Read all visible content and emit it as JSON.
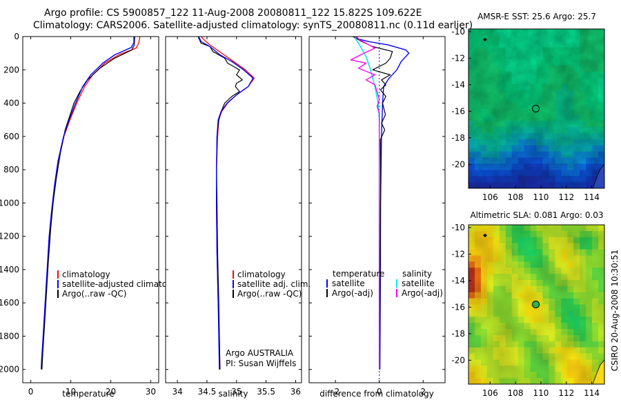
{
  "header": {
    "title_line1": "Argo profile: CS 5900857_122 11-Aug-2008 20080811_122 15.822S 109.622E",
    "title_line2": "Climatology: CARS2006. Satellite-adjusted climatology: synTS_20080811.nc (0.11d earlier)"
  },
  "side_label": "CSIRO 20-Aug-2008 10:30:51",
  "chart_data": [
    {
      "id": "temperature",
      "type": "line",
      "xlabel": "temperature",
      "ylabel": "",
      "xlim": [
        -2,
        32
      ],
      "ylim": [
        2080,
        0
      ],
      "y_reversed": true,
      "xticks": [
        0,
        10,
        20,
        30
      ],
      "yticks": [
        0,
        200,
        400,
        600,
        800,
        1000,
        1200,
        1400,
        1600,
        1800,
        2000
      ],
      "legend": {
        "position": "center-right",
        "entries": [
          "climatology",
          "satellite-adjusted climatology",
          "Argo(..raw -QC)"
        ]
      },
      "series": [
        {
          "name": "climatology",
          "color": "#ff0000",
          "width": 1.3,
          "points": [
            [
              27.3,
              0
            ],
            [
              27.0,
              40
            ],
            [
              26.3,
              70
            ],
            [
              22,
              110
            ],
            [
              18.5,
              160
            ],
            [
              15.5,
              230
            ],
            [
              13.5,
              300
            ],
            [
              11.5,
              400
            ],
            [
              9.8,
              500
            ],
            [
              8.3,
              600
            ],
            [
              6.9,
              750
            ],
            [
              6.0,
              900
            ],
            [
              5.3,
              1050
            ],
            [
              4.7,
              1200
            ],
            [
              4.2,
              1400
            ],
            [
              3.7,
              1600
            ],
            [
              3.2,
              1800
            ],
            [
              2.8,
              1950
            ],
            [
              2.7,
              2000
            ]
          ]
        },
        {
          "name": "Argo(..raw -QC)",
          "color": "#000000",
          "width": 1.2,
          "points": [
            [
              26.0,
              0
            ],
            [
              25.9,
              50
            ],
            [
              25.3,
              80
            ],
            [
              21,
              130
            ],
            [
              17.3,
              190
            ],
            [
              14.2,
              260
            ],
            [
              12.3,
              330
            ],
            [
              10.8,
              400
            ],
            [
              9.7,
              480
            ],
            [
              8.6,
              560
            ],
            [
              7.4,
              700
            ],
            [
              6.4,
              850
            ],
            [
              5.6,
              1000
            ],
            [
              5.0,
              1150
            ],
            [
              4.4,
              1350
            ],
            [
              3.9,
              1550
            ],
            [
              3.4,
              1750
            ],
            [
              3.0,
              1900
            ],
            [
              2.8,
              2000
            ]
          ]
        },
        {
          "name": "satellite-adjusted climatology",
          "color": "#0000ff",
          "width": 1.4,
          "points": [
            [
              25.8,
              0
            ],
            [
              25.8,
              35
            ],
            [
              25.2,
              65
            ],
            [
              21,
              110
            ],
            [
              18.0,
              160
            ],
            [
              15.0,
              230
            ],
            [
              13.0,
              300
            ],
            [
              11.2,
              400
            ],
            [
              9.6,
              500
            ],
            [
              8.2,
              600
            ],
            [
              6.8,
              750
            ],
            [
              5.9,
              900
            ],
            [
              5.2,
              1050
            ],
            [
              4.6,
              1200
            ],
            [
              4.1,
              1400
            ],
            [
              3.6,
              1600
            ],
            [
              3.1,
              1800
            ],
            [
              2.7,
              1950
            ],
            [
              2.6,
              2000
            ]
          ]
        }
      ]
    },
    {
      "id": "salinity",
      "type": "line",
      "xlabel": "salinity",
      "ylabel": "",
      "xlim": [
        33.8,
        36.1
      ],
      "ylim": [
        2080,
        0
      ],
      "y_reversed": true,
      "xticks": [
        34,
        34.5,
        35,
        35.5,
        36
      ],
      "legend": {
        "position": "center-right",
        "entries": [
          "climatology",
          "satellite adj. clim.",
          "Argo(..raw -QC)"
        ]
      },
      "annotations": [
        "Argo AUSTRALIA",
        "PI: Susan Wijffels"
      ],
      "series": [
        {
          "name": "climatology",
          "color": "#ff0000",
          "width": 1.3,
          "points": [
            [
              34.4,
              0
            ],
            [
              34.45,
              20
            ],
            [
              34.55,
              50
            ],
            [
              34.75,
              100
            ],
            [
              34.95,
              150
            ],
            [
              35.15,
              200
            ],
            [
              35.3,
              250
            ],
            [
              35.2,
              300
            ],
            [
              35.0,
              350
            ],
            [
              34.85,
              400
            ],
            [
              34.75,
              450
            ],
            [
              34.7,
              500
            ],
            [
              34.68,
              600
            ],
            [
              34.66,
              800
            ],
            [
              34.66,
              1000
            ],
            [
              34.67,
              1300
            ],
            [
              34.69,
              1600
            ],
            [
              34.71,
              1800
            ],
            [
              34.72,
              2000
            ]
          ]
        },
        {
          "name": "Argo(..raw -QC)",
          "color": "#000000",
          "width": 1.2,
          "points": [
            [
              34.35,
              0
            ],
            [
              34.4,
              40
            ],
            [
              34.55,
              60
            ],
            [
              34.6,
              90
            ],
            [
              34.8,
              130
            ],
            [
              34.85,
              160
            ],
            [
              34.95,
              180
            ],
            [
              35.05,
              200
            ],
            [
              35.0,
              230
            ],
            [
              35.1,
              260
            ],
            [
              35.0,
              280
            ],
            [
              34.98,
              300
            ],
            [
              35.05,
              330
            ],
            [
              34.92,
              360
            ],
            [
              34.8,
              400
            ],
            [
              34.74,
              450
            ],
            [
              34.7,
              500
            ],
            [
              34.67,
              600
            ],
            [
              34.66,
              800
            ],
            [
              34.67,
              1000
            ],
            [
              34.68,
              1300
            ],
            [
              34.7,
              1600
            ],
            [
              34.71,
              1800
            ],
            [
              34.72,
              2000
            ]
          ]
        },
        {
          "name": "satellite adj. clim.",
          "color": "#0000ff",
          "width": 1.4,
          "points": [
            [
              34.36,
              0
            ],
            [
              34.4,
              30
            ],
            [
              34.55,
              60
            ],
            [
              34.72,
              110
            ],
            [
              34.92,
              150
            ],
            [
              35.12,
              200
            ],
            [
              35.28,
              250
            ],
            [
              35.2,
              300
            ],
            [
              35.0,
              350
            ],
            [
              34.84,
              400
            ],
            [
              34.74,
              450
            ],
            [
              34.69,
              500
            ],
            [
              34.67,
              600
            ],
            [
              34.66,
              800
            ],
            [
              34.66,
              1000
            ],
            [
              34.67,
              1300
            ],
            [
              34.69,
              1600
            ],
            [
              34.7,
              1800
            ],
            [
              34.71,
              2000
            ]
          ]
        }
      ]
    },
    {
      "id": "difference",
      "type": "line",
      "xlabel": "difference from climatology",
      "ylabel": "",
      "xlim": [
        -3.2,
        3.0
      ],
      "ylim": [
        2080,
        0
      ],
      "y_reversed": true,
      "xticks": [
        -2,
        0,
        2
      ],
      "legend": {
        "position": "center",
        "group_titles": [
          "temperature",
          "salinity"
        ],
        "entries": [
          "satellite",
          "Argo(-adj)",
          "satellite",
          "Argo(-adj)"
        ]
      },
      "series": [
        {
          "name": "satellite",
          "group": "temperature",
          "color": "#0000ff",
          "width": 1.4,
          "points": [
            [
              -1.0,
              0
            ],
            [
              -1.1,
              10
            ],
            [
              -0.5,
              30
            ],
            [
              0.4,
              50
            ],
            [
              1.2,
              80
            ],
            [
              1.35,
              100
            ],
            [
              1.0,
              150
            ],
            [
              0.8,
              200
            ],
            [
              0.45,
              250
            ],
            [
              0.2,
              300
            ],
            [
              0.15,
              400
            ],
            [
              0.1,
              600
            ],
            [
              0.06,
              1000
            ],
            [
              0.05,
              1500
            ],
            [
              0.03,
              2000
            ]
          ]
        },
        {
          "name": "Argo(-adj)",
          "group": "temperature",
          "color": "#000000",
          "width": 1.2,
          "points": [
            [
              -1.2,
              0
            ],
            [
              -0.8,
              30
            ],
            [
              -0.3,
              60
            ],
            [
              0.6,
              90
            ],
            [
              0.5,
              130
            ],
            [
              0.3,
              160
            ],
            [
              -0.3,
              200
            ],
            [
              0.5,
              230
            ],
            [
              0.1,
              260
            ],
            [
              0.3,
              290
            ],
            [
              0.05,
              320
            ],
            [
              0.3,
              360
            ],
            [
              0.15,
              400
            ],
            [
              0.28,
              470
            ],
            [
              0.1,
              520
            ],
            [
              0.25,
              560
            ],
            [
              0.05,
              620
            ],
            [
              0.06,
              800
            ],
            [
              0.05,
              1200
            ],
            [
              0.03,
              1600
            ],
            [
              0.02,
              2000
            ]
          ]
        },
        {
          "name": "satellite",
          "group": "salinity",
          "color": "#00e5ee",
          "width": 1.6,
          "points": [
            [
              -1.1,
              0
            ],
            [
              -1.05,
              20
            ],
            [
              -0.9,
              50
            ],
            [
              -0.6,
              120
            ],
            [
              -0.4,
              200
            ],
            [
              -0.2,
              300
            ],
            [
              -0.05,
              400
            ],
            [
              0.0,
              500
            ],
            [
              0.0,
              700
            ],
            [
              0.0,
              1000
            ],
            [
              0.0,
              1500
            ],
            [
              0.0,
              2000
            ]
          ]
        },
        {
          "name": "Argo(-adj)",
          "group": "salinity",
          "color": "#ff00ff",
          "width": 1.4,
          "points": [
            [
              -1.05,
              0
            ],
            [
              -0.9,
              20
            ],
            [
              -0.6,
              40
            ],
            [
              -0.2,
              70
            ],
            [
              -0.7,
              100
            ],
            [
              -1.3,
              140
            ],
            [
              -0.6,
              160
            ],
            [
              -0.95,
              190
            ],
            [
              -0.2,
              230
            ],
            [
              -0.6,
              260
            ],
            [
              -0.2,
              290
            ],
            [
              -0.1,
              330
            ],
            [
              0.0,
              380
            ],
            [
              -0.1,
              420
            ],
            [
              0.0,
              460
            ],
            [
              0.0,
              500
            ],
            [
              0.0,
              800
            ],
            [
              0.0,
              1200
            ],
            [
              0.0,
              2000
            ]
          ]
        }
      ]
    },
    {
      "id": "amsre_sst",
      "type": "heatmap",
      "title": "AMSR-E SST: 25.6 Argo: 25.7",
      "xlim": [
        104.3,
        115
      ],
      "ylim": [
        -21.8,
        -9.8
      ],
      "xticks": [
        106,
        108,
        110,
        112,
        114
      ],
      "yticks": [
        -10,
        -12,
        -14,
        -16,
        -18,
        -20
      ],
      "argo_position": [
        109.6,
        -15.8
      ],
      "marker": [
        105.6,
        -10.6
      ],
      "colors": [
        "#06d48a",
        "#05c878",
        "#10c06a",
        "#08bd86",
        "#07b49a",
        "#06a6b0",
        "#0a8ad0",
        "#0b6ad8",
        "#0d4dd0",
        "#123cbf",
        "#1a2fae"
      ]
    },
    {
      "id": "altimetric_sla",
      "type": "heatmap",
      "title": "Altimetric SLA: 0.081 Argo: 0.03",
      "xlim": [
        104.3,
        115
      ],
      "ylim": [
        -21.8,
        -9.8
      ],
      "xticks": [
        106,
        108,
        110,
        112,
        114
      ],
      "yticks": [
        -10,
        -12,
        -14,
        -16,
        -18,
        -20
      ],
      "argo_position": [
        109.6,
        -15.8
      ],
      "marker": [
        105.6,
        -10.6
      ],
      "colors": [
        "#20d060",
        "#30d050",
        "#60d840",
        "#8ee030",
        "#b8e628",
        "#e0ee20",
        "#f6e410",
        "#fbd010",
        "#f8a810",
        "#e86a10",
        "#b83018"
      ]
    }
  ]
}
